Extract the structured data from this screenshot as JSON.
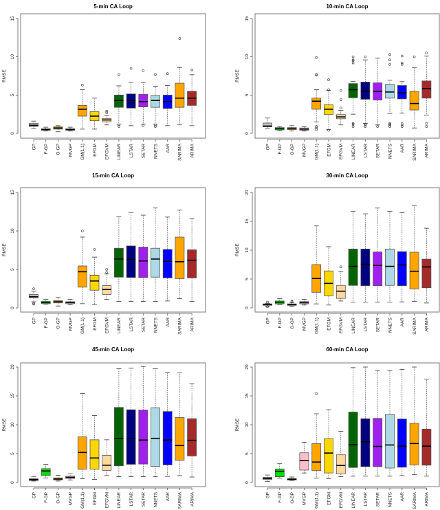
{
  "chart_data": [
    {
      "type": "boxplot",
      "title": "5-min CA Loop",
      "ylabel": "RMSE",
      "ylim": [
        0,
        15
      ],
      "yticks": [
        0,
        5,
        10,
        15
      ],
      "categories": [
        "GP",
        "F-GP",
        "O-GP",
        "MVGP",
        "GM(1,1)",
        "EFGM",
        "EFGVM",
        "LINEAR",
        "LSTAR",
        "SETAR",
        "NNETS",
        "AAR",
        "SARIMA",
        "ARIMA"
      ],
      "boxes": [
        {
          "min": 0.6,
          "q1": 0.9,
          "median": 1.05,
          "q3": 1.3,
          "max": 1.6,
          "outliers": []
        },
        {
          "min": 0.3,
          "q1": 0.4,
          "median": 0.5,
          "q3": 0.6,
          "max": 0.8,
          "outliers": []
        },
        {
          "min": 0.2,
          "q1": 0.55,
          "median": 0.7,
          "q3": 0.85,
          "max": 1.0,
          "outliers": []
        },
        {
          "min": 0.3,
          "q1": 0.4,
          "median": 0.5,
          "q3": 0.6,
          "max": 0.8,
          "outliers": []
        },
        {
          "min": 0.55,
          "q1": 2.25,
          "median": 3.15,
          "q3": 3.65,
          "max": 5.7,
          "outliers": [
            6.3
          ]
        },
        {
          "min": 0.55,
          "q1": 1.65,
          "median": 2.25,
          "q3": 2.85,
          "max": 4.6,
          "outliers": []
        },
        {
          "min": 1.1,
          "q1": 1.5,
          "median": 1.75,
          "q3": 1.95,
          "max": 2.3,
          "outliers": [
            2.7,
            2.9
          ]
        },
        {
          "min": 1.2,
          "q1": 3.4,
          "median": 4.3,
          "q3": 5.0,
          "max": 6.2,
          "outliers": [
            0.9,
            1.1,
            7.7
          ]
        },
        {
          "min": 1.0,
          "q1": 3.3,
          "median": 4.3,
          "q3": 5.15,
          "max": 6.7,
          "outliers": [
            8.5
          ]
        },
        {
          "min": 1.2,
          "q1": 3.45,
          "median": 4.15,
          "q3": 5.1,
          "max": 6.65,
          "outliers": [
            1.0,
            8.2
          ]
        },
        {
          "min": 1.2,
          "q1": 3.4,
          "median": 4.3,
          "q3": 4.95,
          "max": 6.15,
          "outliers": [
            0.9,
            1.1,
            7.7
          ]
        },
        {
          "min": 1.0,
          "q1": 3.25,
          "median": 4.15,
          "q3": 5.0,
          "max": 6.25,
          "outliers": [
            7.8
          ]
        },
        {
          "min": 1.15,
          "q1": 3.4,
          "median": 4.6,
          "q3": 6.55,
          "max": 8.6,
          "outliers": [
            12.4
          ]
        },
        {
          "min": 1.0,
          "q1": 3.65,
          "median": 4.6,
          "q3": 5.5,
          "max": 7.65,
          "outliers": [
            8.3
          ]
        }
      ]
    },
    {
      "type": "boxplot",
      "title": "10-min CA Loop",
      "ylabel": "RMSE",
      "ylim": [
        0,
        15
      ],
      "yticks": [
        0,
        5,
        10,
        15
      ],
      "categories": [
        "GP",
        "F-GP",
        "O-GP",
        "MVGP",
        "GM(1,1)",
        "EFGM",
        "EFGVM",
        "LINEAR",
        "LSTAR",
        "SETAR",
        "NNETS",
        "AAR",
        "SARIMA",
        "ARIMA"
      ],
      "boxes": [
        {
          "min": 0.6,
          "q1": 0.85,
          "median": 0.95,
          "q3": 1.35,
          "max": 2.0,
          "outliers": []
        },
        {
          "min": 0.35,
          "q1": 0.45,
          "median": 0.6,
          "q3": 0.75,
          "max": 0.9,
          "outliers": []
        },
        {
          "min": 0.3,
          "q1": 0.5,
          "median": 0.6,
          "q3": 0.75,
          "max": 1.0,
          "outliers": []
        },
        {
          "min": 0.3,
          "q1": 0.4,
          "median": 0.55,
          "q3": 0.7,
          "max": 0.85,
          "outliers": []
        },
        {
          "min": 1.5,
          "q1": 3.15,
          "median": 4.2,
          "q3": 4.6,
          "max": 5.7,
          "outliers": [
            0.5,
            0.7,
            0.9,
            7.6,
            7.7,
            9.9
          ]
        },
        {
          "min": 0.5,
          "q1": 2.45,
          "median": 3.15,
          "q3": 3.75,
          "max": 5.6,
          "outliers": [
            0.4,
            5.7,
            7.0
          ]
        },
        {
          "min": 1.1,
          "q1": 1.9,
          "median": 2.15,
          "q3": 2.45,
          "max": 3.0,
          "outliers": [
            3.3,
            4.4,
            5.6
          ]
        },
        {
          "min": 2.5,
          "q1": 4.65,
          "median": 5.7,
          "q3": 6.5,
          "max": 6.8,
          "outliers": [
            0.9,
            1.2,
            1.3,
            9.2,
            9.5,
            9.6,
            10.0
          ]
        },
        {
          "min": 1.3,
          "q1": 4.45,
          "median": 5.5,
          "q3": 6.7,
          "max": 9.6,
          "outliers": [
            0.9,
            1.1,
            1.2,
            10.0
          ]
        },
        {
          "min": 1.1,
          "q1": 4.35,
          "median": 5.5,
          "q3": 6.6,
          "max": 9.85,
          "outliers": [
            0.9
          ]
        },
        {
          "min": 2.6,
          "q1": 4.6,
          "median": 5.4,
          "q3": 6.4,
          "max": 6.95,
          "outliers": [
            0.9,
            1.1,
            1.2,
            1.3,
            9.0,
            9.6,
            10.3
          ]
        },
        {
          "min": 2.65,
          "q1": 4.5,
          "median": 5.3,
          "q3": 6.25,
          "max": 6.75,
          "outliers": [
            0.9,
            1.1,
            1.3,
            9.0,
            9.2,
            10.1
          ]
        },
        {
          "min": 0.7,
          "q1": 3.05,
          "median": 3.9,
          "q3": 5.5,
          "max": 8.6,
          "outliers": [
            10.0
          ]
        },
        {
          "min": 2.4,
          "q1": 4.6,
          "median": 5.85,
          "q3": 6.85,
          "max": 10.1,
          "outliers": [
            0.9,
            1.3,
            10.5
          ]
        }
      ]
    },
    {
      "type": "boxplot",
      "title": "15-min CA Loop",
      "ylabel": "RMSE",
      "ylim": [
        0,
        15
      ],
      "yticks": [
        0,
        5,
        10,
        15
      ],
      "categories": [
        "GP",
        "F-GP",
        "O-GP",
        "MVGP",
        "GM(1,1)",
        "EFGM",
        "EFGVM",
        "LINEAR",
        "LSTAR",
        "SETAR",
        "NNETS",
        "AAR",
        "SARIMA",
        "ARIMA"
      ],
      "boxes": [
        {
          "min": 0.8,
          "q1": 1.3,
          "median": 1.45,
          "q3": 1.75,
          "max": 2.2,
          "outliers": [
            0.5,
            0.6,
            2.5
          ]
        },
        {
          "min": 0.5,
          "q1": 0.55,
          "median": 0.7,
          "q3": 0.85,
          "max": 1.1,
          "outliers": []
        },
        {
          "min": 0.25,
          "q1": 0.65,
          "median": 0.8,
          "q3": 0.95,
          "max": 1.35,
          "outliers": []
        },
        {
          "min": 0.4,
          "q1": 0.55,
          "median": 0.7,
          "q3": 0.8,
          "max": 1.1,
          "outliers": []
        },
        {
          "min": 0.55,
          "q1": 2.7,
          "median": 4.7,
          "q3": 5.45,
          "max": 9.2,
          "outliers": [
            10.0
          ]
        },
        {
          "min": 0.45,
          "q1": 2.3,
          "median": 3.5,
          "q3": 4.25,
          "max": 6.6,
          "outliers": [
            7.6
          ]
        },
        {
          "min": 1.1,
          "q1": 1.75,
          "median": 2.4,
          "q3": 2.9,
          "max": 4.4,
          "outliers": [
            4.6,
            5.0
          ]
        },
        {
          "min": 0.85,
          "q1": 4.0,
          "median": 6.35,
          "q3": 7.75,
          "max": 11.85,
          "outliers": []
        },
        {
          "min": 0.85,
          "q1": 3.95,
          "median": 6.3,
          "q3": 8.05,
          "max": 12.4,
          "outliers": []
        },
        {
          "min": 0.85,
          "q1": 3.95,
          "median": 6.1,
          "q3": 7.9,
          "max": 12.05,
          "outliers": []
        },
        {
          "min": 0.85,
          "q1": 4.0,
          "median": 6.35,
          "q3": 7.75,
          "max": 13.0,
          "outliers": []
        },
        {
          "min": 0.9,
          "q1": 3.9,
          "median": 6.05,
          "q3": 7.6,
          "max": 11.8,
          "outliers": []
        },
        {
          "min": 1.2,
          "q1": 3.8,
          "median": 6.0,
          "q3": 9.2,
          "max": 12.7,
          "outliers": []
        },
        {
          "min": 0.85,
          "q1": 3.9,
          "median": 6.2,
          "q3": 7.55,
          "max": 11.6,
          "outliers": []
        }
      ]
    },
    {
      "type": "boxplot",
      "title": "30-min CA Loop",
      "ylabel": "RMSE",
      "ylim": [
        0,
        20
      ],
      "yticks": [
        0,
        5,
        10,
        15,
        20
      ],
      "categories": [
        "GP",
        "F-GP",
        "O-GP",
        "MVGP",
        "GM(1,1)",
        "EFGM",
        "EFGVM",
        "LINEAR",
        "LSTAR",
        "SETAR",
        "NNETS",
        "AAR",
        "SARIMA",
        "ARIMA"
      ],
      "boxes": [
        {
          "min": 0.3,
          "q1": 0.45,
          "median": 0.6,
          "q3": 0.7,
          "max": 0.8,
          "outliers": [
            0.2,
            1.0
          ]
        },
        {
          "min": 0.6,
          "q1": 0.7,
          "median": 1.0,
          "q3": 1.2,
          "max": 1.6,
          "outliers": []
        },
        {
          "min": 0.3,
          "q1": 0.45,
          "median": 0.55,
          "q3": 0.7,
          "max": 0.9,
          "outliers": [
            1.1,
            1.2
          ]
        },
        {
          "min": 0.5,
          "q1": 0.7,
          "median": 0.9,
          "q3": 1.1,
          "max": 1.5,
          "outliers": []
        },
        {
          "min": 0.7,
          "q1": 2.7,
          "median": 5.1,
          "q3": 7.5,
          "max": 14.2,
          "outliers": []
        },
        {
          "min": 0.5,
          "q1": 2.1,
          "median": 4.25,
          "q3": 6.4,
          "max": 10.6,
          "outliers": []
        },
        {
          "min": 1.2,
          "q1": 1.65,
          "median": 2.9,
          "q3": 3.9,
          "max": 6.3,
          "outliers": [
            7.1
          ]
        },
        {
          "min": 1.0,
          "q1": 3.9,
          "median": 7.2,
          "q3": 10.2,
          "max": 16.7,
          "outliers": []
        },
        {
          "min": 1.0,
          "q1": 3.85,
          "median": 7.55,
          "q3": 10.2,
          "max": 16.3,
          "outliers": []
        },
        {
          "min": 1.0,
          "q1": 3.85,
          "median": 7.35,
          "q3": 9.7,
          "max": 17.3,
          "outliers": []
        },
        {
          "min": 1.0,
          "q1": 3.9,
          "median": 7.2,
          "q3": 10.2,
          "max": 16.7,
          "outliers": []
        },
        {
          "min": 1.05,
          "q1": 3.85,
          "median": 7.45,
          "q3": 9.75,
          "max": 16.5,
          "outliers": []
        },
        {
          "min": 1.15,
          "q1": 3.3,
          "median": 6.35,
          "q3": 9.65,
          "max": 17.7,
          "outliers": []
        },
        {
          "min": 0.85,
          "q1": 3.5,
          "median": 7.1,
          "q3": 8.45,
          "max": 13.8,
          "outliers": []
        }
      ]
    },
    {
      "type": "boxplot",
      "title": "45-min CA Loop",
      "ylabel": "RMSE",
      "ylim": [
        0,
        20
      ],
      "yticks": [
        0,
        5,
        10,
        15,
        20
      ],
      "categories": [
        "GP",
        "F-GP",
        "O-GP",
        "MVGP",
        "GM(1,1)",
        "EFGM",
        "EFGVM",
        "LINEAR",
        "LSTAR",
        "SETAR",
        "NNETS",
        "AAR",
        "SARIMA",
        "ARIMA"
      ],
      "boxes": [
        {
          "min": 0.25,
          "q1": 0.35,
          "median": 0.5,
          "q3": 0.65,
          "max": 1.05,
          "outliers": []
        },
        {
          "min": 0.8,
          "q1": 1.2,
          "median": 2.0,
          "q3": 2.4,
          "max": 3.15,
          "outliers": []
        },
        {
          "min": 0.25,
          "q1": 0.45,
          "median": 0.6,
          "q3": 0.8,
          "max": 1.25,
          "outliers": []
        },
        {
          "min": 0.45,
          "q1": 0.7,
          "median": 0.9,
          "q3": 1.1,
          "max": 1.5,
          "outliers": []
        },
        {
          "min": 0.65,
          "q1": 2.3,
          "median": 5.2,
          "q3": 7.9,
          "max": 15.4,
          "outliers": []
        },
        {
          "min": 0.55,
          "q1": 2.3,
          "median": 4.25,
          "q3": 7.4,
          "max": 11.6,
          "outliers": []
        },
        {
          "min": 1.2,
          "q1": 2.1,
          "median": 3.0,
          "q3": 4.7,
          "max": 7.4,
          "outliers": []
        },
        {
          "min": 1.0,
          "q1": 2.9,
          "median": 7.6,
          "q3": 13.0,
          "max": 19.7,
          "outliers": []
        },
        {
          "min": 1.0,
          "q1": 3.15,
          "median": 7.65,
          "q3": 12.6,
          "max": 19.8,
          "outliers": []
        },
        {
          "min": 1.0,
          "q1": 3.2,
          "median": 7.35,
          "q3": 12.55,
          "max": 20.1,
          "outliers": []
        },
        {
          "min": 1.0,
          "q1": 2.8,
          "median": 7.65,
          "q3": 12.95,
          "max": 19.7,
          "outliers": []
        },
        {
          "min": 1.05,
          "q1": 3.05,
          "median": 7.35,
          "q3": 12.3,
          "max": 19.1,
          "outliers": []
        },
        {
          "min": 1.2,
          "q1": 3.85,
          "median": 6.4,
          "q3": 11.25,
          "max": 19.0,
          "outliers": []
        },
        {
          "min": 0.95,
          "q1": 4.6,
          "median": 7.3,
          "q3": 11.05,
          "max": 17.1,
          "outliers": []
        }
      ]
    },
    {
      "type": "boxplot",
      "title": "60-min CA Loop",
      "ylabel": "RMSE",
      "ylim": [
        0,
        20
      ],
      "yticks": [
        0,
        5,
        10,
        15,
        20
      ],
      "categories": [
        "GP",
        "F-GP",
        "O-GP",
        "MVGP",
        "GM(1,1)",
        "EFGM",
        "EFGVM",
        "LINEAR",
        "LSTAR",
        "SETAR",
        "NNETS",
        "AAR",
        "SARIMA",
        "ARIMA"
      ],
      "boxes": [
        {
          "min": 0.2,
          "q1": 0.5,
          "median": 0.7,
          "q3": 0.9,
          "max": 1.3,
          "outliers": []
        },
        {
          "min": 0.75,
          "q1": 1.0,
          "median": 1.95,
          "q3": 2.35,
          "max": 3.25,
          "outliers": []
        },
        {
          "min": 0.35,
          "q1": 0.45,
          "median": 0.55,
          "q3": 0.7,
          "max": 0.95,
          "outliers": []
        },
        {
          "min": 1.65,
          "q1": 2.15,
          "median": 3.8,
          "q3": 5.15,
          "max": 6.95,
          "outliers": []
        },
        {
          "min": 0.75,
          "q1": 2.05,
          "median": 3.55,
          "q3": 6.75,
          "max": 11.9,
          "outliers": [
            15.4
          ]
        },
        {
          "min": 0.65,
          "q1": 1.65,
          "median": 5.1,
          "q3": 7.6,
          "max": 12.6,
          "outliers": []
        },
        {
          "min": 1.0,
          "q1": 1.5,
          "median": 2.95,
          "q3": 4.8,
          "max": 8.85,
          "outliers": []
        },
        {
          "min": 1.1,
          "q1": 2.6,
          "median": 6.55,
          "q3": 12.2,
          "max": 19.9,
          "outliers": []
        },
        {
          "min": 1.1,
          "q1": 2.75,
          "median": 7.05,
          "q3": 11.05,
          "max": 20.0,
          "outliers": []
        },
        {
          "min": 1.1,
          "q1": 2.75,
          "median": 6.25,
          "q3": 11.1,
          "max": 19.4,
          "outliers": []
        },
        {
          "min": 1.1,
          "q1": 2.5,
          "median": 6.5,
          "q3": 11.8,
          "max": 19.4,
          "outliers": []
        },
        {
          "min": 1.2,
          "q1": 2.65,
          "median": 6.3,
          "q3": 11.0,
          "max": 19.6,
          "outliers": []
        },
        {
          "min": 1.35,
          "q1": 3.05,
          "median": 6.75,
          "q3": 10.25,
          "max": 20.0,
          "outliers": []
        },
        {
          "min": 1.1,
          "q1": 3.0,
          "median": 6.3,
          "q3": 9.25,
          "max": 17.9,
          "outliers": []
        }
      ]
    }
  ],
  "colors": {
    "GP": "#bebebe",
    "F-GP": "#00dd00",
    "O-GP": "#e0b000",
    "MVGP": "#ffc0cb",
    "GM(1,1)": "#ffa500",
    "EFGM": "#ffd700",
    "EFGVM": "#ffd9a0",
    "LINEAR": "#006400",
    "LSTAR": "#000080",
    "SETAR": "#a020f0",
    "NNETS": "#add8e6",
    "AAR": "#0000ff",
    "SARIMA": "#ffa500",
    "ARIMA": "#a52a2a"
  },
  "grid": false
}
